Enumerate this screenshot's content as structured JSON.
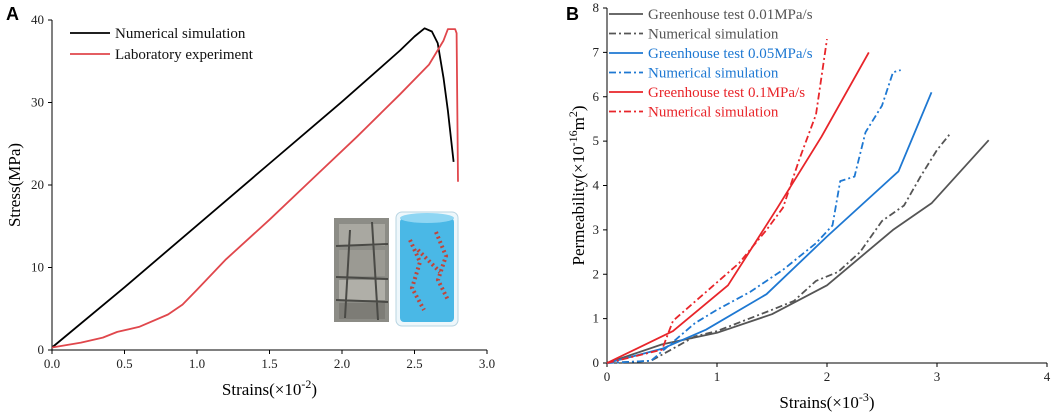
{
  "chart_data": [
    {
      "panel": "A",
      "type": "line",
      "xlabel_base": "Strains(×10",
      "xlabel_exp": "-2",
      "xlabel_end": ")",
      "ylabel": "Stress(MPa)",
      "xlim": [
        0,
        3.0
      ],
      "ylim": [
        0,
        40
      ],
      "xticks": [
        "0.0",
        "0.5",
        "1.0",
        "1.5",
        "2.0",
        "2.5",
        "3.0"
      ],
      "yticks": [
        "0",
        "10",
        "20",
        "30",
        "40"
      ],
      "legend_position": "top-left",
      "series": [
        {
          "name": "Numerical simulation",
          "color": "#000000",
          "dash": "solid",
          "points": [
            [
              0,
              0.3
            ],
            [
              0.5,
              7.6
            ],
            [
              1.0,
              15.1
            ],
            [
              1.5,
              22.6
            ],
            [
              2.0,
              30.1
            ],
            [
              2.4,
              36.3
            ],
            [
              2.5,
              38.0
            ],
            [
              2.57,
              39.0
            ],
            [
              2.62,
              38.6
            ],
            [
              2.66,
              37.2
            ],
            [
              2.7,
              33.0
            ],
            [
              2.73,
              29.0
            ],
            [
              2.77,
              22.8
            ]
          ]
        },
        {
          "name": "Laboratory experiment",
          "color": "#e0474c",
          "dash": "solid",
          "points": [
            [
              0,
              0.3
            ],
            [
              0.2,
              0.9
            ],
            [
              0.35,
              1.5
            ],
            [
              0.45,
              2.2
            ],
            [
              0.6,
              2.8
            ],
            [
              0.8,
              4.3
            ],
            [
              0.9,
              5.5
            ],
            [
              1.0,
              7.3
            ],
            [
              1.2,
              11.0
            ],
            [
              1.5,
              15.8
            ],
            [
              1.8,
              20.8
            ],
            [
              2.1,
              25.8
            ],
            [
              2.4,
              31.0
            ],
            [
              2.6,
              34.6
            ],
            [
              2.7,
              37.5
            ],
            [
              2.73,
              38.9
            ],
            [
              2.78,
              38.9
            ],
            [
              2.79,
              38.4
            ],
            [
              2.8,
              20.4
            ]
          ]
        }
      ]
    },
    {
      "panel": "B",
      "type": "line",
      "xlabel_base": "Strains(×10",
      "xlabel_exp": "-3",
      "xlabel_end": ")",
      "ylabel_base": "Permeability(×10",
      "ylabel_exp": "-16",
      "ylabel_mid": "m",
      "ylabel_exp2": "2",
      "ylabel_end": ")",
      "xlim": [
        0,
        4
      ],
      "ylim": [
        0,
        8
      ],
      "xticks": [
        "0",
        "1",
        "2",
        "3",
        "4"
      ],
      "yticks": [
        "0",
        "1",
        "2",
        "3",
        "4",
        "5",
        "6",
        "7",
        "8"
      ],
      "legend_position": "top-left",
      "series": [
        {
          "name": "Greenhouse test 0.01MPa/s",
          "color": "#555555",
          "dash": "solid",
          "points": [
            [
              0,
              0
            ],
            [
              0.5,
              0.42
            ],
            [
              1.0,
              0.68
            ],
            [
              1.5,
              1.1
            ],
            [
              2.0,
              1.75
            ],
            [
              2.6,
              3.0
            ],
            [
              2.95,
              3.6
            ],
            [
              3.47,
              5.02
            ]
          ]
        },
        {
          "name": "Numerical simulation",
          "color": "#555555",
          "dash": "dashdot",
          "points": [
            [
              0,
              0
            ],
            [
              0.4,
              0.05
            ],
            [
              0.8,
              0.6
            ],
            [
              1.0,
              0.72
            ],
            [
              1.5,
              1.2
            ],
            [
              1.7,
              1.4
            ],
            [
              1.9,
              1.85
            ],
            [
              2.1,
              2.05
            ],
            [
              2.3,
              2.5
            ],
            [
              2.5,
              3.2
            ],
            [
              2.7,
              3.55
            ],
            [
              2.85,
              4.2
            ],
            [
              3.0,
              4.8
            ],
            [
              3.12,
              5.17
            ]
          ]
        },
        {
          "name": "Greenhouse test 0.05MPa/s",
          "color": "#1e78d2",
          "dash": "solid",
          "points": [
            [
              0,
              0
            ],
            [
              0.5,
              0.32
            ],
            [
              0.9,
              0.75
            ],
            [
              1.45,
              1.55
            ],
            [
              2.0,
              2.85
            ],
            [
              2.65,
              4.32
            ],
            [
              2.95,
              6.1
            ]
          ]
        },
        {
          "name": "Numerical simulation",
          "color": "#1e78d2",
          "dash": "dashdot",
          "points": [
            [
              0,
              0
            ],
            [
              0.4,
              0.05
            ],
            [
              0.8,
              0.9
            ],
            [
              1.0,
              1.2
            ],
            [
              1.3,
              1.6
            ],
            [
              1.6,
              2.1
            ],
            [
              1.9,
              2.7
            ],
            [
              2.05,
              3.1
            ],
            [
              2.12,
              4.1
            ],
            [
              2.25,
              4.2
            ],
            [
              2.35,
              5.2
            ],
            [
              2.5,
              5.8
            ],
            [
              2.6,
              6.55
            ],
            [
              2.67,
              6.6
            ]
          ]
        },
        {
          "name": "Greenhouse test 0.1MPa/s",
          "color": "#e8252a",
          "dash": "solid",
          "points": [
            [
              0,
              0
            ],
            [
              0.6,
              0.72
            ],
            [
              1.1,
              1.75
            ],
            [
              1.55,
              3.5
            ],
            [
              1.95,
              5.1
            ],
            [
              2.38,
              7.0
            ]
          ]
        },
        {
          "name": "Numerical simulation",
          "color": "#e8252a",
          "dash": "dashdot",
          "points": [
            [
              0,
              0
            ],
            [
              0.5,
              0.3
            ],
            [
              0.6,
              0.95
            ],
            [
              0.9,
              1.6
            ],
            [
              1.2,
              2.25
            ],
            [
              1.45,
              3.0
            ],
            [
              1.6,
              3.5
            ],
            [
              1.75,
              4.6
            ],
            [
              1.9,
              5.6
            ],
            [
              2.0,
              7.3
            ]
          ]
        }
      ]
    }
  ]
}
